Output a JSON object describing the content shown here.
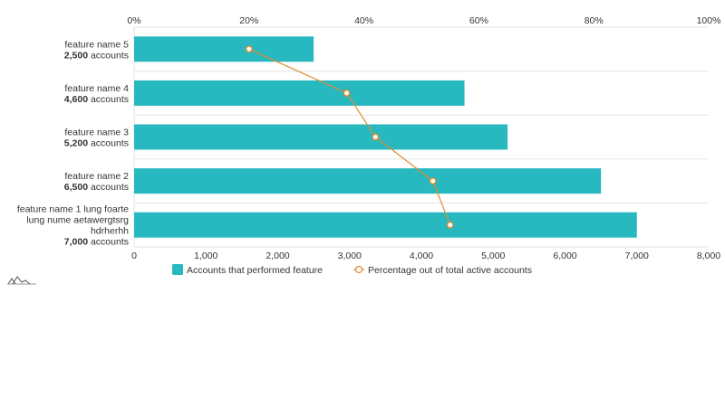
{
  "chart_data": {
    "type": "bar",
    "orientation": "horizontal",
    "categories": [
      {
        "label_lines": [
          "feature name 5"
        ],
        "count": "2,500",
        "unit": "accounts"
      },
      {
        "label_lines": [
          "feature name 4"
        ],
        "count": "4,600",
        "unit": "accounts"
      },
      {
        "label_lines": [
          "feature name 3"
        ],
        "count": "5,200",
        "unit": "accounts"
      },
      {
        "label_lines": [
          "feature name 2"
        ],
        "count": "6,500",
        "unit": "accounts"
      },
      {
        "label_lines": [
          "feature name 1 lung foarte",
          "lung nume aetawergtsrg",
          "hdrherhh"
        ],
        "count": "7,000",
        "unit": "accounts"
      }
    ],
    "series": [
      {
        "name": "Accounts that performed feature",
        "type": "bar",
        "axis": "bottom",
        "values": [
          2500,
          4600,
          5200,
          6500,
          7000
        ],
        "color": "#27b8c0"
      },
      {
        "name": "Percentage out of total active accounts",
        "type": "line",
        "axis": "top",
        "values": [
          20,
          37,
          42,
          52,
          55
        ],
        "color": "#e08c2e"
      }
    ],
    "x_bottom": {
      "min": 0,
      "max": 8000,
      "ticks": [
        "0",
        "1,000",
        "2,000",
        "3,000",
        "4,000",
        "5,000",
        "6,000",
        "7,000",
        "8,000"
      ]
    },
    "x_top": {
      "min": 0,
      "max": 100,
      "ticks": [
        "0%",
        "20%",
        "40%",
        "60%",
        "80%",
        "100%"
      ]
    },
    "grid": true,
    "legend_position": "bottom"
  },
  "logo_icon": "amcharts-logo-icon"
}
